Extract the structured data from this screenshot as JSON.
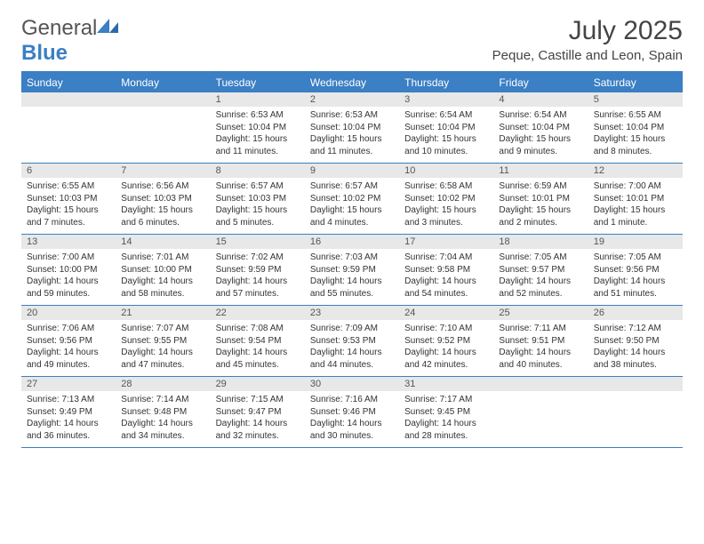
{
  "logo": {
    "text1": "General",
    "text2": "Blue"
  },
  "title": "July 2025",
  "location": "Peque, Castille and Leon, Spain",
  "colors": {
    "accent": "#3b7fc4",
    "header_bg": "#3b7fc4",
    "header_text": "#ffffff",
    "daynum_bg": "#e8e8e8",
    "text": "#333333",
    "background": "#ffffff"
  },
  "day_names": [
    "Sunday",
    "Monday",
    "Tuesday",
    "Wednesday",
    "Thursday",
    "Friday",
    "Saturday"
  ],
  "weeks": [
    [
      {
        "n": "",
        "lines": []
      },
      {
        "n": "",
        "lines": []
      },
      {
        "n": "1",
        "lines": [
          "Sunrise: 6:53 AM",
          "Sunset: 10:04 PM",
          "Daylight: 15 hours",
          "and 11 minutes."
        ]
      },
      {
        "n": "2",
        "lines": [
          "Sunrise: 6:53 AM",
          "Sunset: 10:04 PM",
          "Daylight: 15 hours",
          "and 11 minutes."
        ]
      },
      {
        "n": "3",
        "lines": [
          "Sunrise: 6:54 AM",
          "Sunset: 10:04 PM",
          "Daylight: 15 hours",
          "and 10 minutes."
        ]
      },
      {
        "n": "4",
        "lines": [
          "Sunrise: 6:54 AM",
          "Sunset: 10:04 PM",
          "Daylight: 15 hours",
          "and 9 minutes."
        ]
      },
      {
        "n": "5",
        "lines": [
          "Sunrise: 6:55 AM",
          "Sunset: 10:04 PM",
          "Daylight: 15 hours",
          "and 8 minutes."
        ]
      }
    ],
    [
      {
        "n": "6",
        "lines": [
          "Sunrise: 6:55 AM",
          "Sunset: 10:03 PM",
          "Daylight: 15 hours",
          "and 7 minutes."
        ]
      },
      {
        "n": "7",
        "lines": [
          "Sunrise: 6:56 AM",
          "Sunset: 10:03 PM",
          "Daylight: 15 hours",
          "and 6 minutes."
        ]
      },
      {
        "n": "8",
        "lines": [
          "Sunrise: 6:57 AM",
          "Sunset: 10:03 PM",
          "Daylight: 15 hours",
          "and 5 minutes."
        ]
      },
      {
        "n": "9",
        "lines": [
          "Sunrise: 6:57 AM",
          "Sunset: 10:02 PM",
          "Daylight: 15 hours",
          "and 4 minutes."
        ]
      },
      {
        "n": "10",
        "lines": [
          "Sunrise: 6:58 AM",
          "Sunset: 10:02 PM",
          "Daylight: 15 hours",
          "and 3 minutes."
        ]
      },
      {
        "n": "11",
        "lines": [
          "Sunrise: 6:59 AM",
          "Sunset: 10:01 PM",
          "Daylight: 15 hours",
          "and 2 minutes."
        ]
      },
      {
        "n": "12",
        "lines": [
          "Sunrise: 7:00 AM",
          "Sunset: 10:01 PM",
          "Daylight: 15 hours",
          "and 1 minute."
        ]
      }
    ],
    [
      {
        "n": "13",
        "lines": [
          "Sunrise: 7:00 AM",
          "Sunset: 10:00 PM",
          "Daylight: 14 hours",
          "and 59 minutes."
        ]
      },
      {
        "n": "14",
        "lines": [
          "Sunrise: 7:01 AM",
          "Sunset: 10:00 PM",
          "Daylight: 14 hours",
          "and 58 minutes."
        ]
      },
      {
        "n": "15",
        "lines": [
          "Sunrise: 7:02 AM",
          "Sunset: 9:59 PM",
          "Daylight: 14 hours",
          "and 57 minutes."
        ]
      },
      {
        "n": "16",
        "lines": [
          "Sunrise: 7:03 AM",
          "Sunset: 9:59 PM",
          "Daylight: 14 hours",
          "and 55 minutes."
        ]
      },
      {
        "n": "17",
        "lines": [
          "Sunrise: 7:04 AM",
          "Sunset: 9:58 PM",
          "Daylight: 14 hours",
          "and 54 minutes."
        ]
      },
      {
        "n": "18",
        "lines": [
          "Sunrise: 7:05 AM",
          "Sunset: 9:57 PM",
          "Daylight: 14 hours",
          "and 52 minutes."
        ]
      },
      {
        "n": "19",
        "lines": [
          "Sunrise: 7:05 AM",
          "Sunset: 9:56 PM",
          "Daylight: 14 hours",
          "and 51 minutes."
        ]
      }
    ],
    [
      {
        "n": "20",
        "lines": [
          "Sunrise: 7:06 AM",
          "Sunset: 9:56 PM",
          "Daylight: 14 hours",
          "and 49 minutes."
        ]
      },
      {
        "n": "21",
        "lines": [
          "Sunrise: 7:07 AM",
          "Sunset: 9:55 PM",
          "Daylight: 14 hours",
          "and 47 minutes."
        ]
      },
      {
        "n": "22",
        "lines": [
          "Sunrise: 7:08 AM",
          "Sunset: 9:54 PM",
          "Daylight: 14 hours",
          "and 45 minutes."
        ]
      },
      {
        "n": "23",
        "lines": [
          "Sunrise: 7:09 AM",
          "Sunset: 9:53 PM",
          "Daylight: 14 hours",
          "and 44 minutes."
        ]
      },
      {
        "n": "24",
        "lines": [
          "Sunrise: 7:10 AM",
          "Sunset: 9:52 PM",
          "Daylight: 14 hours",
          "and 42 minutes."
        ]
      },
      {
        "n": "25",
        "lines": [
          "Sunrise: 7:11 AM",
          "Sunset: 9:51 PM",
          "Daylight: 14 hours",
          "and 40 minutes."
        ]
      },
      {
        "n": "26",
        "lines": [
          "Sunrise: 7:12 AM",
          "Sunset: 9:50 PM",
          "Daylight: 14 hours",
          "and 38 minutes."
        ]
      }
    ],
    [
      {
        "n": "27",
        "lines": [
          "Sunrise: 7:13 AM",
          "Sunset: 9:49 PM",
          "Daylight: 14 hours",
          "and 36 minutes."
        ]
      },
      {
        "n": "28",
        "lines": [
          "Sunrise: 7:14 AM",
          "Sunset: 9:48 PM",
          "Daylight: 14 hours",
          "and 34 minutes."
        ]
      },
      {
        "n": "29",
        "lines": [
          "Sunrise: 7:15 AM",
          "Sunset: 9:47 PM",
          "Daylight: 14 hours",
          "and 32 minutes."
        ]
      },
      {
        "n": "30",
        "lines": [
          "Sunrise: 7:16 AM",
          "Sunset: 9:46 PM",
          "Daylight: 14 hours",
          "and 30 minutes."
        ]
      },
      {
        "n": "31",
        "lines": [
          "Sunrise: 7:17 AM",
          "Sunset: 9:45 PM",
          "Daylight: 14 hours",
          "and 28 minutes."
        ]
      },
      {
        "n": "",
        "lines": []
      },
      {
        "n": "",
        "lines": []
      }
    ]
  ]
}
